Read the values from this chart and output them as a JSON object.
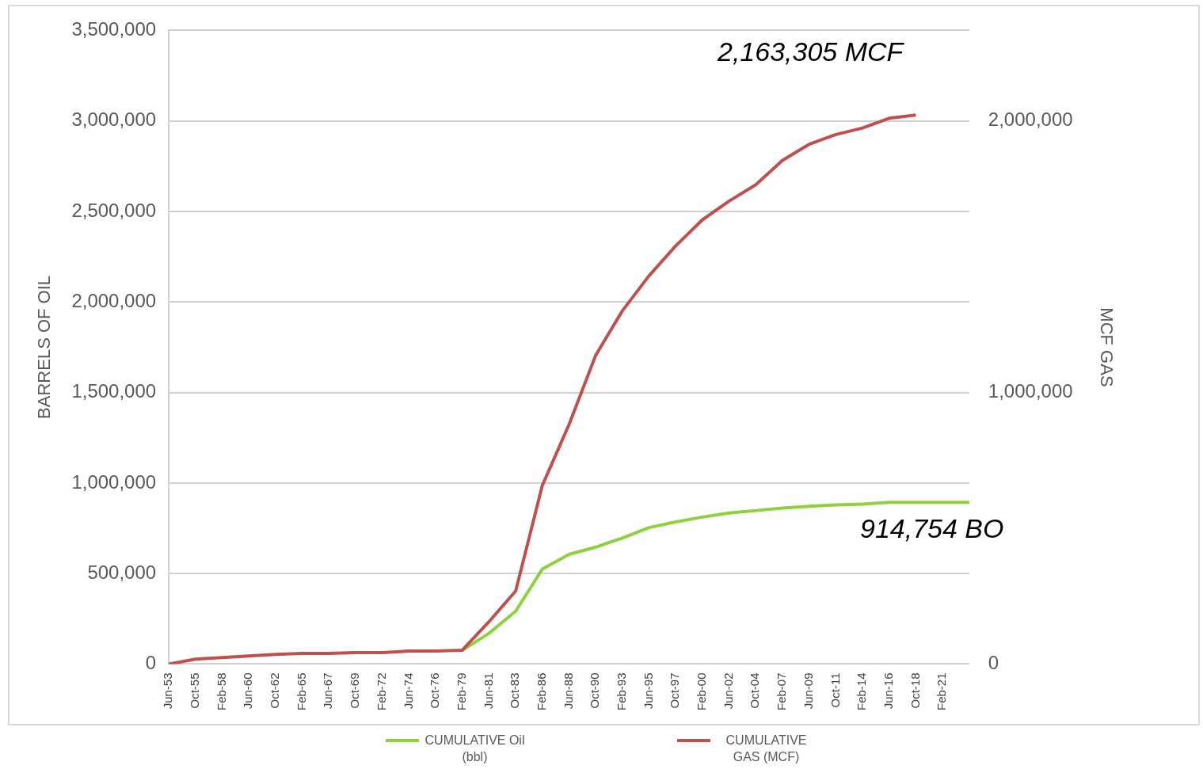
{
  "chart_data": {
    "type": "line",
    "categories": [
      "Jun-53",
      "Oct-55",
      "Feb-58",
      "Jun-60",
      "Oct-62",
      "Feb-65",
      "Jun-67",
      "Oct-69",
      "Feb-72",
      "Jun-74",
      "Oct-76",
      "Feb-79",
      "Jun-81",
      "Oct-83",
      "Feb-86",
      "Jun-88",
      "Oct-90",
      "Feb-93",
      "Jun-95",
      "Oct-97",
      "Feb-00",
      "Jun-02",
      "Oct-04",
      "Feb-07",
      "Jun-09",
      "Oct-11",
      "Feb-14",
      "Jun-16",
      "Oct-18",
      "Feb-21",
      null
    ],
    "series": [
      {
        "name": "CUMULATIVE Oil (bbl)",
        "color": "#8dd13d",
        "values": [
          null,
          null,
          null,
          null,
          null,
          null,
          null,
          null,
          null,
          null,
          null,
          76000,
          170000,
          292000,
          525000,
          606000,
          646000,
          696000,
          754000,
          785000,
          812000,
          834000,
          848000,
          862000,
          871000,
          879000,
          884000,
          893000,
          893000,
          893000,
          893000
        ]
      },
      {
        "name": "CUMULATIVE GAS (MCF)",
        "color": "#c0504d",
        "axis": "y2",
        "values": [
          0,
          18000,
          24000,
          30000,
          36000,
          39000,
          39000,
          42000,
          42000,
          48000,
          48000,
          51000,
          156000,
          269000,
          658000,
          882000,
          1137000,
          1301000,
          1430000,
          1540000,
          1636000,
          1705000,
          1765000,
          1855000,
          1914000,
          1950000,
          1974000,
          2010000,
          2022000,
          null,
          null
        ]
      }
    ],
    "ylabel": "BARRELS OF OIL",
    "y2label": "MCF GAS",
    "ylim": [
      0,
      3500000
    ],
    "yticks": [
      0,
      {
        "value": 500000,
        "label": "500,000"
      },
      {
        "value": 1000000,
        "label": "1,000,000"
      },
      {
        "value": 1500000,
        "label": "1,500,000"
      },
      {
        "value": 2000000,
        "label": "2,000,000"
      },
      {
        "value": 2500000,
        "label": "2,500,000"
      },
      {
        "value": 3000000,
        "label": "3,000,000"
      },
      {
        "value": 3500000,
        "label": "3,500,000"
      }
    ],
    "y2lim": [
      0,
      2333333
    ],
    "y2ticks": [
      0,
      {
        "value": 1000000,
        "label": "1,000,000"
      },
      {
        "value": 2000000,
        "label": "2,000,000"
      }
    ],
    "annotations": [
      "2,163,305 MCF",
      "914,754 BO"
    ],
    "grid": "y",
    "legend": "bottom",
    "marker": "none",
    "line_style": "solid"
  }
}
